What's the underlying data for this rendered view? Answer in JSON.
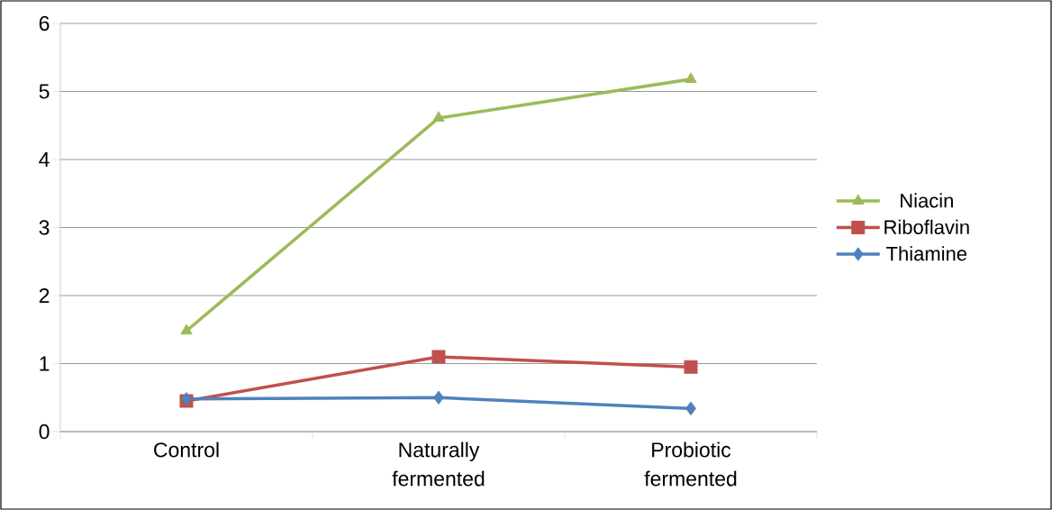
{
  "chart_data": {
    "type": "line",
    "categories": [
      "Control",
      "Naturally fermented",
      "Probiotic fermented"
    ],
    "series": [
      {
        "name": "Niacin",
        "color": "#9bbb59",
        "marker": "triangle",
        "values": [
          1.48,
          4.61,
          5.18
        ]
      },
      {
        "name": "Riboflavin",
        "color": "#c0504d",
        "marker": "square",
        "values": [
          0.45,
          1.1,
          0.95
        ]
      },
      {
        "name": "Thiamine",
        "color": "#4f81bd",
        "marker": "diamond",
        "values": [
          0.48,
          0.5,
          0.34
        ]
      }
    ],
    "ylim": [
      0,
      6
    ],
    "yticks": [
      0,
      1,
      2,
      3,
      4,
      5,
      6
    ],
    "grid": "y",
    "legend": "right",
    "line_style": "solid"
  }
}
